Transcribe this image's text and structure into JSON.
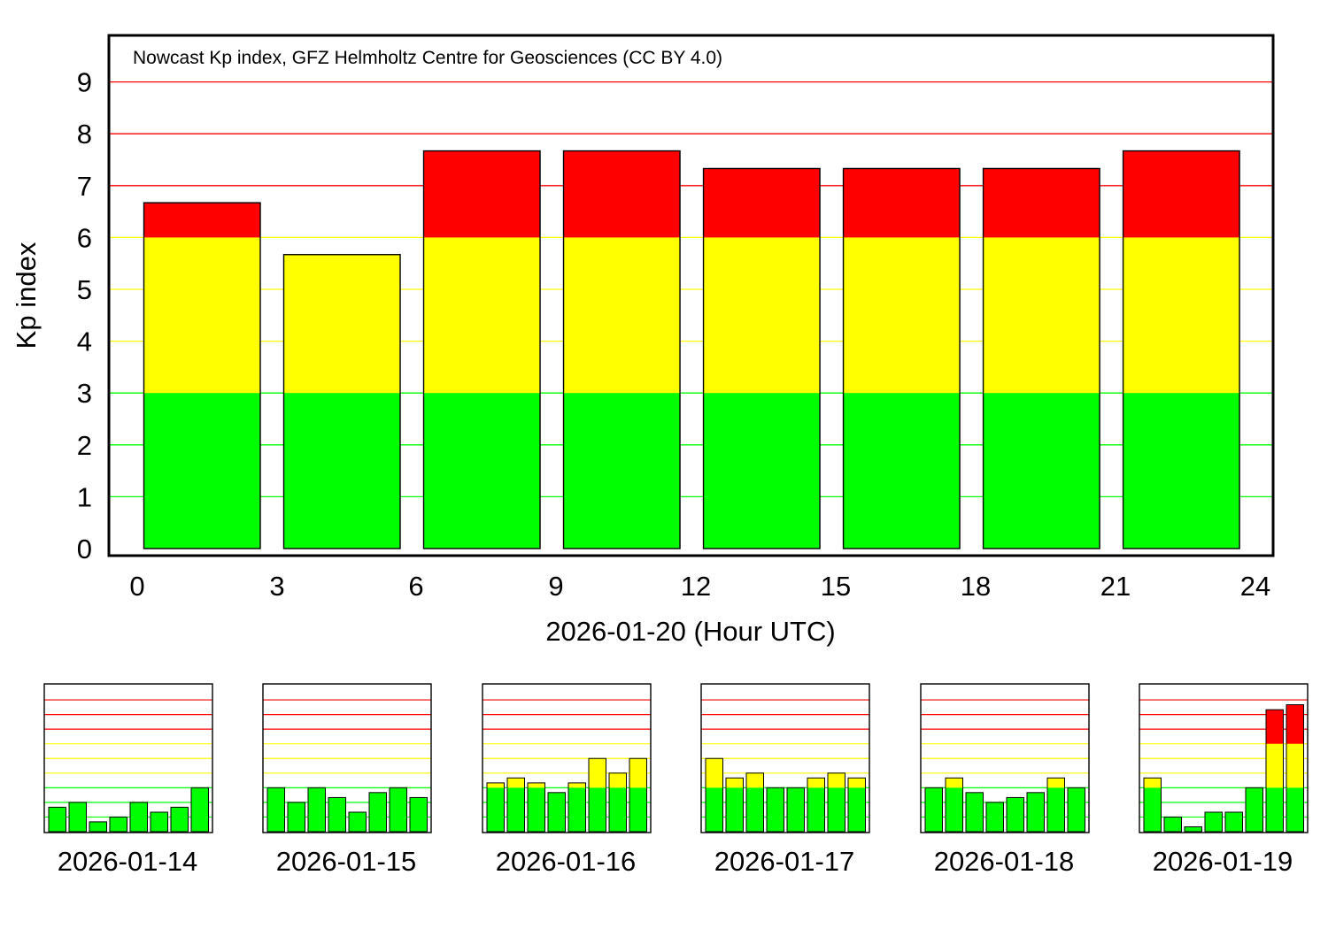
{
  "colors": {
    "quiet": "#00ff00",
    "active": "#ffff00",
    "storm": "#ff0000",
    "frame": "#000000"
  },
  "chart_data": [
    {
      "type": "bar",
      "title": "Nowcast Kp index, GFZ Helmholtz Centre for Geosciences (CC BY 4.0)",
      "xlabel": "2026-01-20 (Hour UTC)",
      "ylabel": "Kp index",
      "xlim": [
        0,
        24
      ],
      "ylim": [
        0,
        9.67
      ],
      "xticks": [
        "0",
        "3",
        "6",
        "9",
        "12",
        "15",
        "18",
        "21",
        "24"
      ],
      "yticks": [
        "0",
        "1",
        "2",
        "3",
        "4",
        "5",
        "6",
        "7",
        "8",
        "9"
      ],
      "bin_start_hours": [
        0,
        3,
        6,
        9,
        12,
        15,
        18,
        21
      ],
      "values": [
        6.67,
        5.67,
        7.67,
        7.67,
        7.33,
        7.33,
        7.33,
        7.67
      ],
      "thresholds": {
        "green_max": 3,
        "yellow_max": 6
      },
      "grid": true
    },
    {
      "type": "bar",
      "date": "2026-01-14",
      "ylim": [
        0,
        9.67
      ],
      "values": [
        1.67,
        2.0,
        0.67,
        1.0,
        2.0,
        1.33,
        1.67,
        3.0
      ]
    },
    {
      "type": "bar",
      "date": "2026-01-15",
      "ylim": [
        0,
        9.67
      ],
      "values": [
        3.0,
        2.0,
        3.0,
        2.33,
        1.33,
        2.67,
        3.0,
        2.33
      ]
    },
    {
      "type": "bar",
      "date": "2026-01-16",
      "ylim": [
        0,
        9.67
      ],
      "values": [
        3.33,
        3.67,
        3.33,
        2.67,
        3.33,
        5.0,
        4.0,
        5.0
      ]
    },
    {
      "type": "bar",
      "date": "2026-01-17",
      "ylim": [
        0,
        9.67
      ],
      "values": [
        5.0,
        3.67,
        4.0,
        3.0,
        3.0,
        3.67,
        4.0,
        3.67
      ]
    },
    {
      "type": "bar",
      "date": "2026-01-18",
      "ylim": [
        0,
        9.67
      ],
      "values": [
        3.0,
        3.67,
        2.67,
        2.0,
        2.33,
        2.67,
        3.67,
        3.0
      ]
    },
    {
      "type": "bar",
      "date": "2026-01-19",
      "ylim": [
        0,
        9.67
      ],
      "values": [
        3.67,
        1.0,
        0.33,
        1.33,
        1.33,
        3.0,
        8.33,
        8.67
      ]
    }
  ]
}
